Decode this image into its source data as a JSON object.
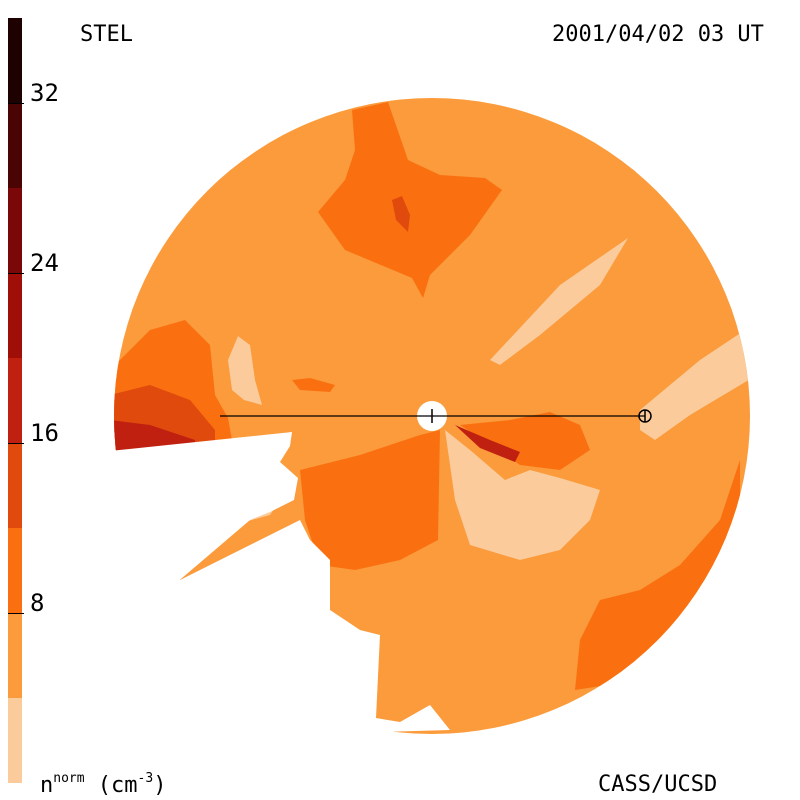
{
  "header": {
    "observatory": "STEL",
    "timestamp": "2001/04/02 03 UT"
  },
  "footer": {
    "quantity_label": "n",
    "quantity_superscript": "norm",
    "quantity_units_open": " (cm",
    "quantity_units_superscript": "-3",
    "quantity_units_close": ")",
    "credit": "CASS/UCSD"
  },
  "colorbar": {
    "range": [
      0,
      36
    ],
    "ticks": [
      {
        "value": 8,
        "label": "8"
      },
      {
        "value": 16,
        "label": "16"
      },
      {
        "value": 24,
        "label": "24"
      },
      {
        "value": 32,
        "label": "32"
      }
    ],
    "bands": [
      {
        "from": 0,
        "to": 4,
        "color": "#fbcb9b"
      },
      {
        "from": 4,
        "to": 8,
        "color": "#fb9b3b"
      },
      {
        "from": 8,
        "to": 12,
        "color": "#fa7010"
      },
      {
        "from": 12,
        "to": 16,
        "color": "#e04a0c"
      },
      {
        "from": 16,
        "to": 20,
        "color": "#c02010"
      },
      {
        "from": 20,
        "to": 24,
        "color": "#a00e08"
      },
      {
        "from": 24,
        "to": 28,
        "color": "#7a0808"
      },
      {
        "from": 28,
        "to": 32,
        "color": "#4a0404"
      },
      {
        "from": 32,
        "to": 36,
        "color": "#1e0202"
      }
    ]
  },
  "chart_data": {
    "type": "heatmap",
    "title": "",
    "colorbar_label": "n norm (cm-3)",
    "value_range": [
      0,
      36
    ],
    "level_step": 4,
    "projection": "polar sky-map (Fisheye), Sun at center, Earth marked at right",
    "colors": {
      "background": "#fb9b3b",
      "light": "#fbcb9b",
      "mid": "#fa7010",
      "high": "#e04a0c",
      "higher": "#c02010",
      "top": "#a00e08"
    }
  }
}
